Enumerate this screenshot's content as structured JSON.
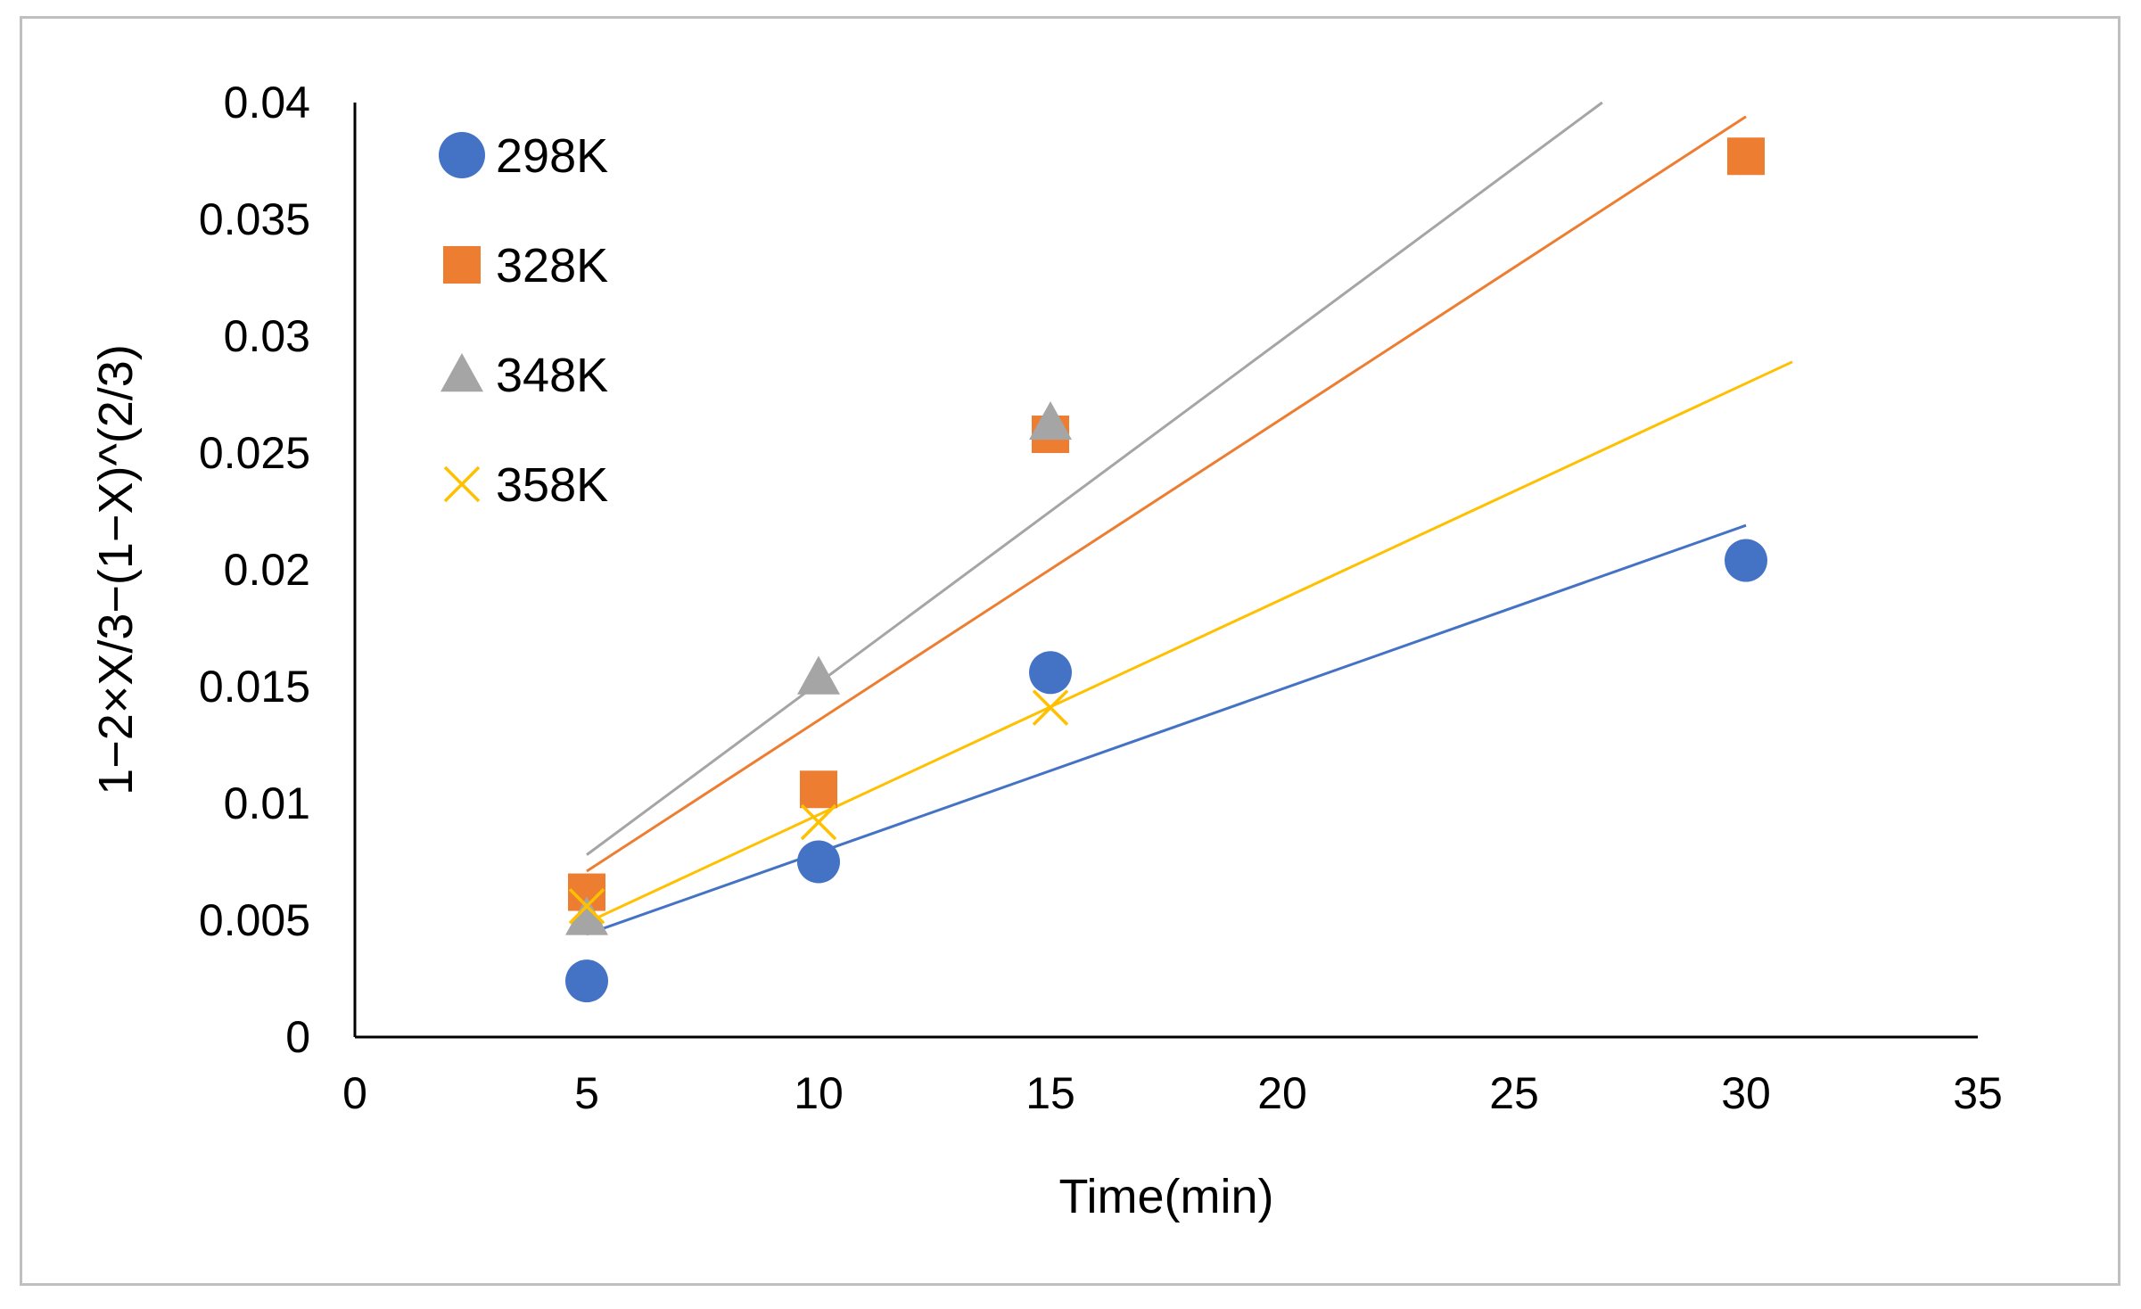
{
  "chart_data": {
    "type": "scatter",
    "title": "",
    "xlabel": "Time(min)",
    "ylabel": "1−2×X/3−(1−X)^(2/3)",
    "xlim": [
      0,
      35
    ],
    "ylim": [
      0,
      0.04
    ],
    "xticks": [
      "0",
      "5",
      "10",
      "15",
      "20",
      "25",
      "30",
      "35"
    ],
    "yticks": [
      "0",
      "0.005",
      "0.01",
      "0.015",
      "0.02",
      "0.025",
      "0.03",
      "0.035",
      "0.04"
    ],
    "grid": false,
    "legend_position": "top-left",
    "series": [
      {
        "name": "298K",
        "marker": "circle",
        "color": "#4472C4",
        "x": [
          5,
          10,
          15,
          30
        ],
        "y": [
          0.0024,
          0.0075,
          0.0156,
          0.0204
        ],
        "trendline": {
          "x": [
            5,
            30
          ],
          "y": [
            0.0044,
            0.0219
          ]
        }
      },
      {
        "name": "328K",
        "marker": "square",
        "color": "#ED7D31",
        "x": [
          5,
          10,
          15,
          30
        ],
        "y": [
          0.0062,
          0.0106,
          0.0258,
          0.0377
        ],
        "trendline": {
          "x": [
            5,
            30
          ],
          "y": [
            0.0071,
            0.0394
          ]
        }
      },
      {
        "name": "348K",
        "marker": "triangle",
        "color": "#A5A5A5",
        "x": [
          5,
          10,
          15
        ],
        "y": [
          0.0051,
          0.0154,
          0.0263
        ],
        "trendline": {
          "x": [
            5,
            26.9
          ],
          "y": [
            0.0078,
            0.04
          ]
        }
      },
      {
        "name": "358K",
        "marker": "x",
        "color": "#FFC000",
        "x": [
          5,
          10,
          15
        ],
        "y": [
          0.0056,
          0.0092,
          0.0141
        ],
        "trendline": {
          "x": [
            5,
            31
          ],
          "y": [
            0.0049,
            0.0289
          ]
        }
      }
    ]
  }
}
